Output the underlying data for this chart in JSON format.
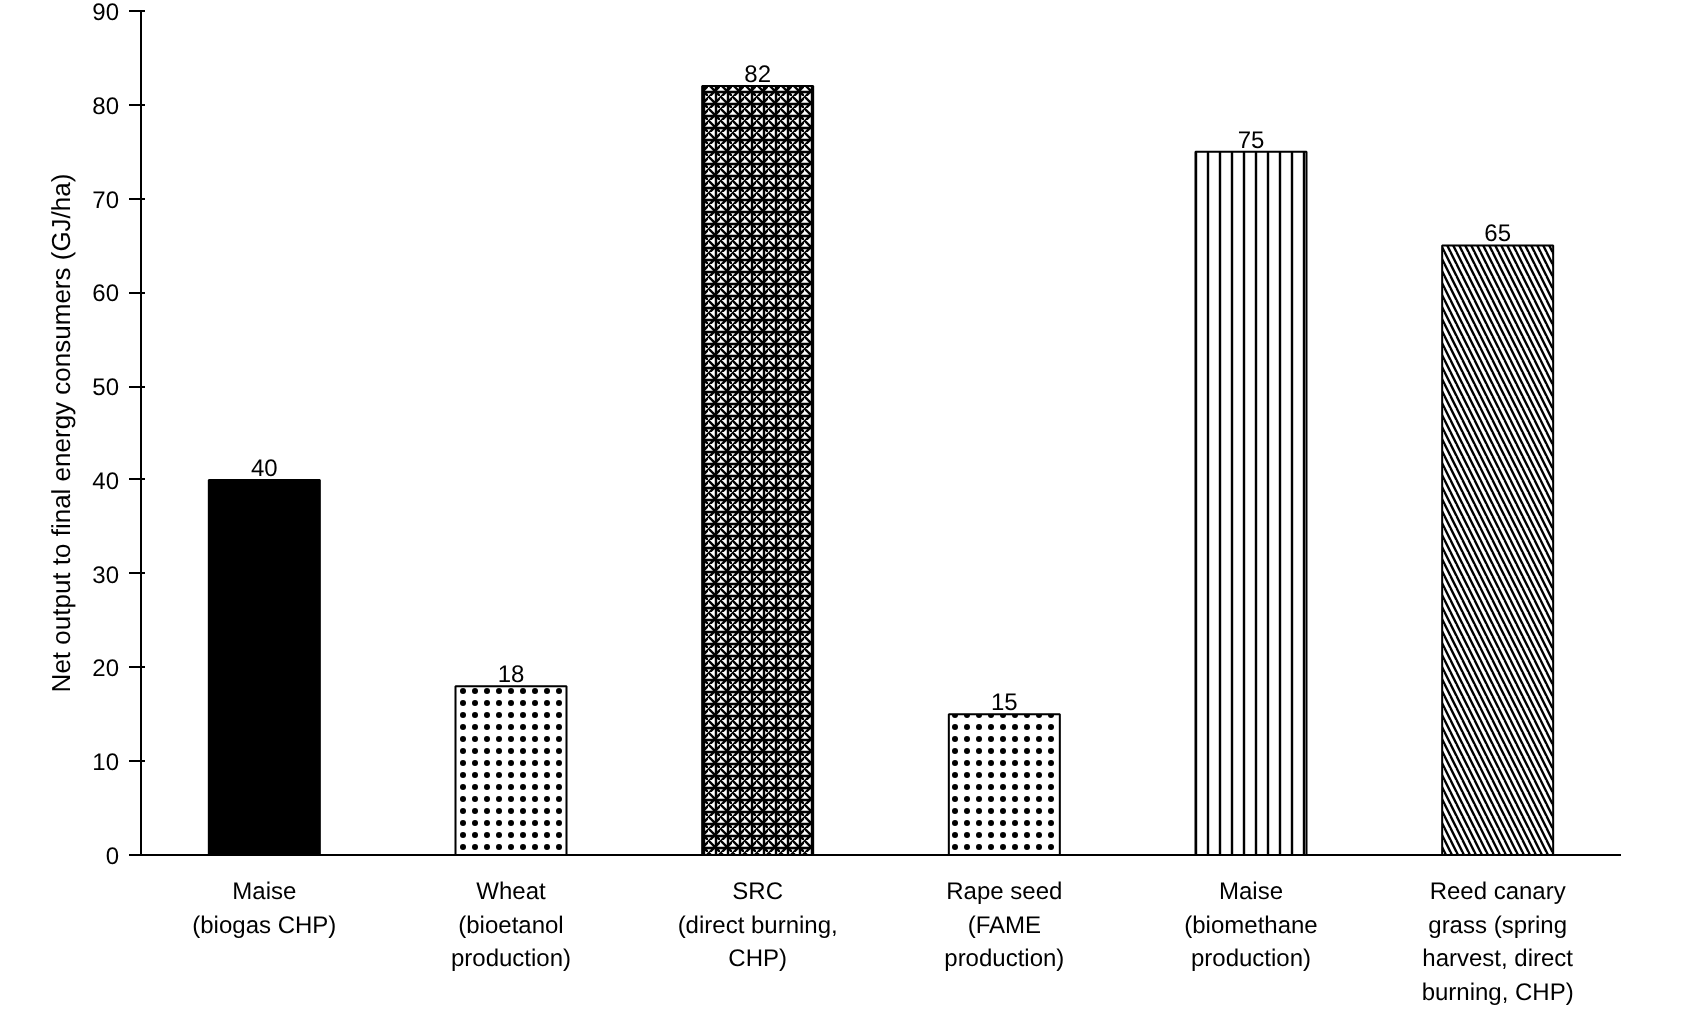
{
  "chart_data": {
    "type": "bar",
    "ylabel": "Net output to final energy consumers (GJ/ha)",
    "categories": [
      "Maise\n(biogas CHP)",
      "Wheat\n(bioetanol\nproduction)",
      "SRC\n(direct burning,\nCHP)",
      "Rape seed\n(FAME\nproduction)",
      "Maise\n(biomethane\nproduction)",
      "Reed canary\ngrass (spring\nharvest, direct\nburning, CHP)"
    ],
    "values": [
      40,
      18,
      82,
      15,
      75,
      65
    ],
    "colors": [
      "#000000",
      "#ffffff",
      "#ffffff",
      "#ffffff",
      "#ffffff",
      "#ffffff"
    ],
    "ylim": [
      0,
      90
    ],
    "yticks": [
      0,
      10,
      20,
      30,
      40,
      50,
      60,
      70,
      80,
      90
    ],
    "data_labels": true,
    "grid": false
  }
}
